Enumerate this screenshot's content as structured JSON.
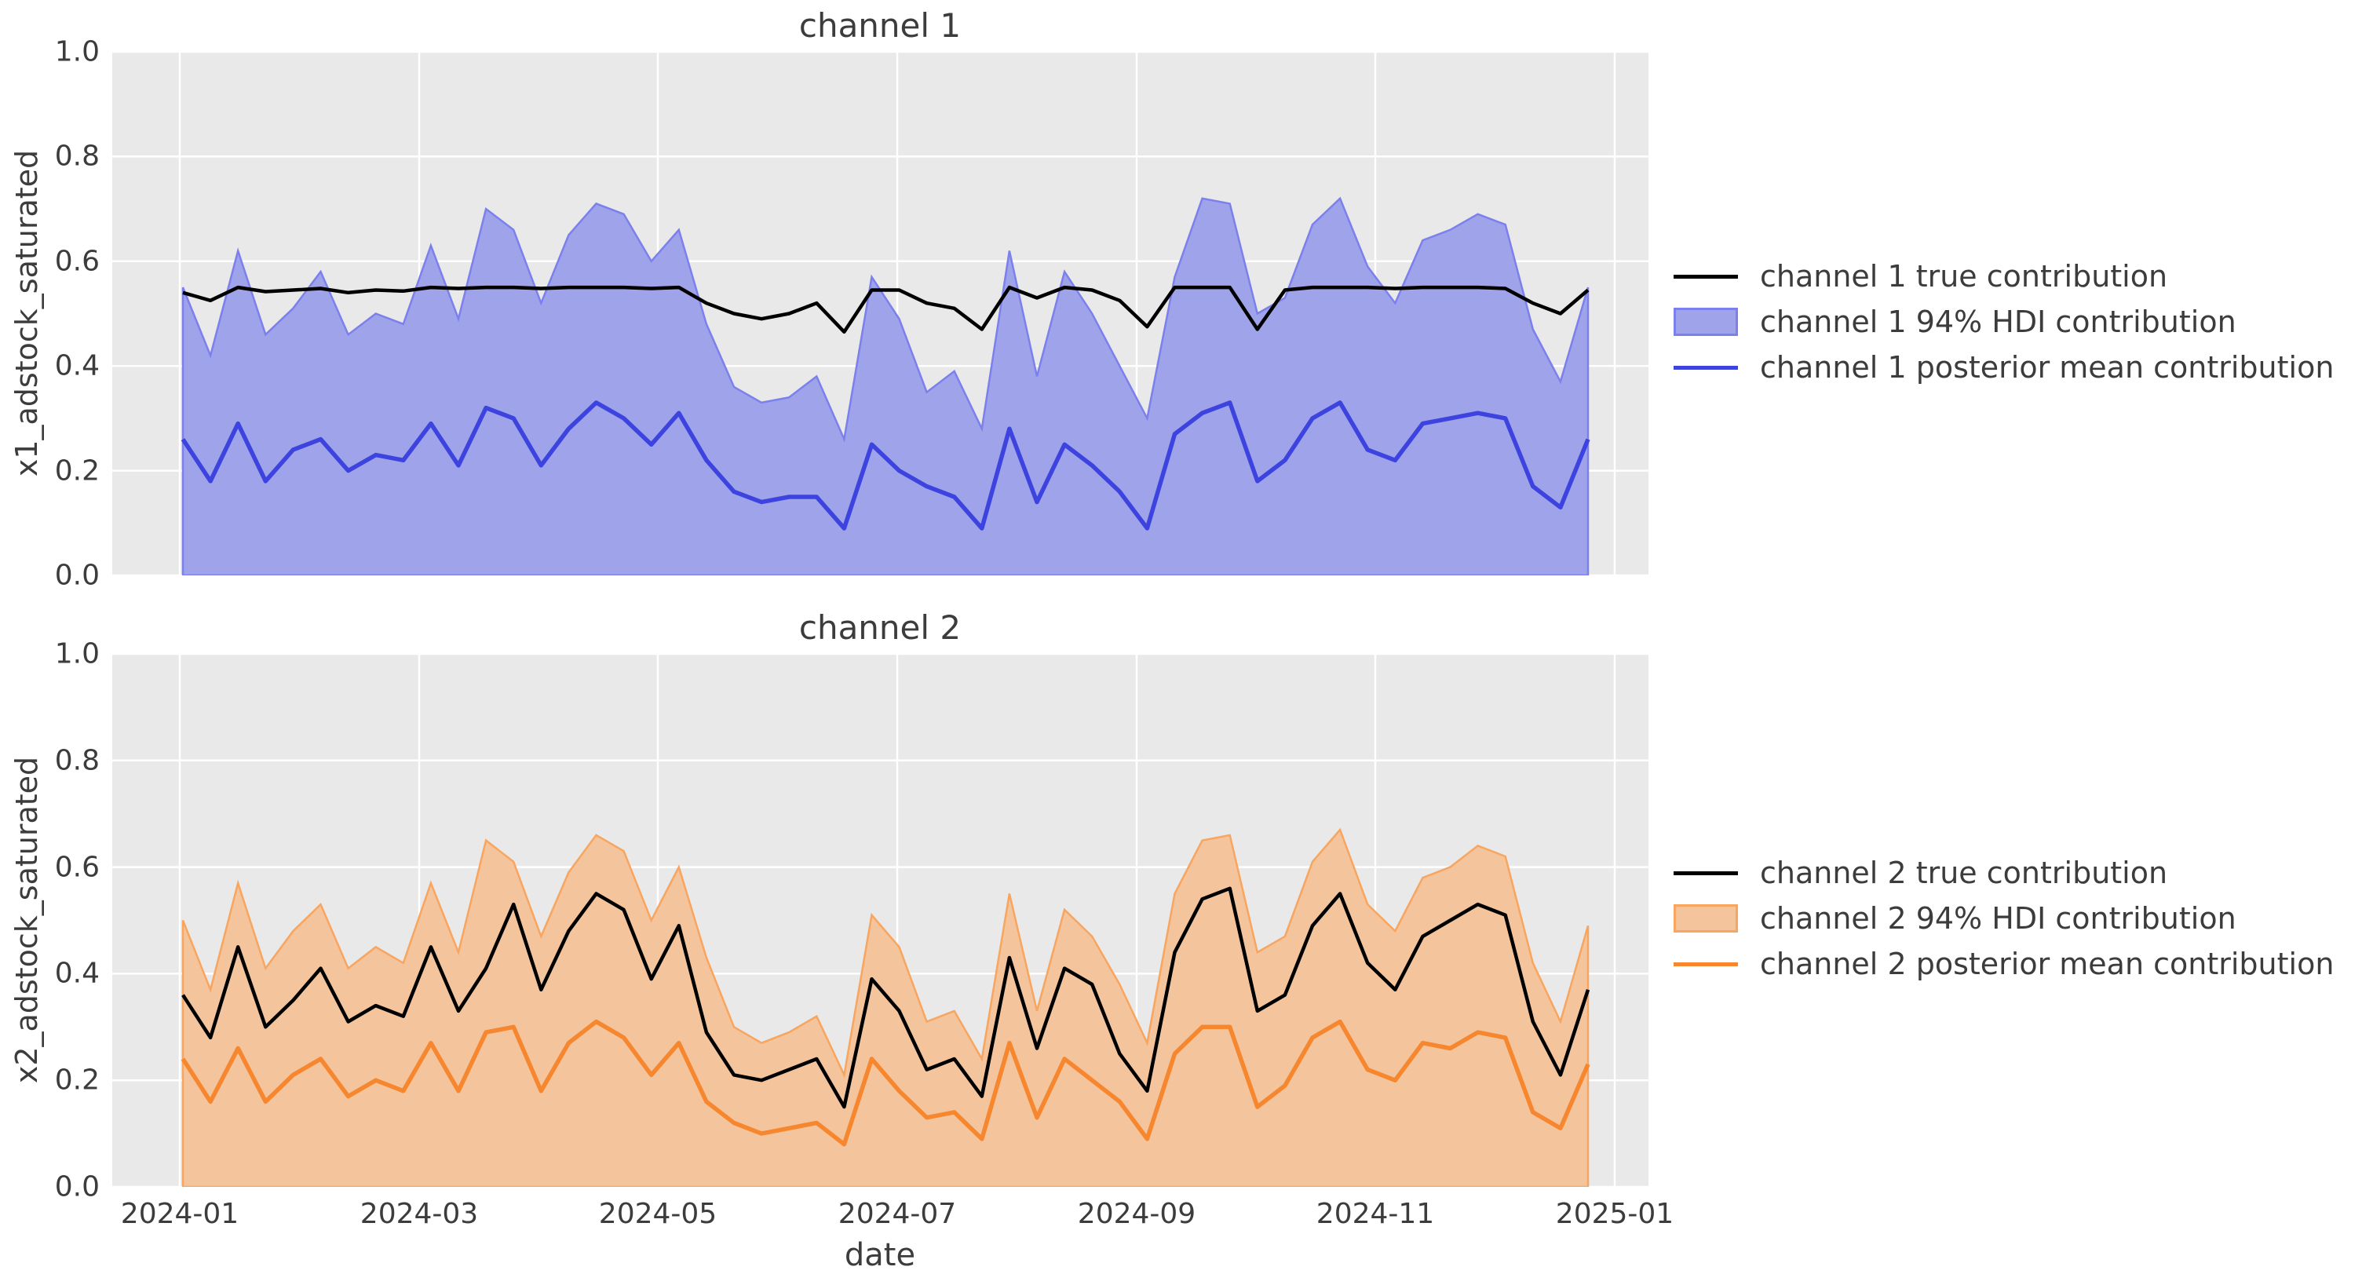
{
  "xlabel": "date",
  "colors": {
    "plot_background": "#e9e9e9",
    "grid": "#ffffff",
    "true_line": "#000000",
    "ch1_band_fill": "#9fa3ea",
    "ch1_band_edge": "#7c80ec",
    "ch1_mean_line": "#3d43df",
    "ch2_band_fill": "#f4c49d",
    "ch2_band_edge": "#f8a55f",
    "ch2_mean_line": "#f6872f",
    "text": "#3c3c3c"
  },
  "chart_data": [
    {
      "type": "line",
      "title": "channel 1",
      "xlabel": "date",
      "ylabel": "x1_adstock_saturated",
      "ylim": [
        0.0,
        1.0
      ],
      "y_ticks": [
        0.0,
        0.2,
        0.4,
        0.6,
        0.8,
        1.0
      ],
      "x_tick_labels": [
        "2024-01",
        "2024-03",
        "2024-05",
        "2024-07",
        "2024-09",
        "2024-11",
        "2025-01"
      ],
      "show_x_tick_labels": false,
      "grid": true,
      "legend_position": "right",
      "x_start": "2024-01-01",
      "x_freq": "weekly",
      "n_points": 52,
      "series": [
        {
          "name": "channel 1 true contribution",
          "kind": "line",
          "color_key": "true_line",
          "values": [
            0.54,
            0.525,
            0.55,
            0.542,
            0.545,
            0.548,
            0.54,
            0.545,
            0.543,
            0.55,
            0.548,
            0.55,
            0.55,
            0.548,
            0.55,
            0.55,
            0.55,
            0.548,
            0.55,
            0.52,
            0.5,
            0.49,
            0.5,
            0.52,
            0.465,
            0.545,
            0.545,
            0.52,
            0.51,
            0.47,
            0.55,
            0.53,
            0.55,
            0.545,
            0.525,
            0.475,
            0.55,
            0.55,
            0.55,
            0.47,
            0.545,
            0.55,
            0.55,
            0.55,
            0.548,
            0.55,
            0.55,
            0.55,
            0.548,
            0.52,
            0.5,
            0.545
          ]
        },
        {
          "name": "channel 1 94% HDI contribution",
          "kind": "band",
          "fill_key": "ch1_band_fill",
          "edge_key": "ch1_band_edge",
          "lower": 0.0,
          "upper": [
            0.55,
            0.42,
            0.62,
            0.46,
            0.51,
            0.58,
            0.46,
            0.5,
            0.48,
            0.63,
            0.49,
            0.7,
            0.66,
            0.52,
            0.65,
            0.71,
            0.69,
            0.6,
            0.66,
            0.48,
            0.36,
            0.33,
            0.34,
            0.38,
            0.26,
            0.57,
            0.49,
            0.35,
            0.39,
            0.28,
            0.62,
            0.38,
            0.58,
            0.5,
            0.4,
            0.3,
            0.57,
            0.72,
            0.71,
            0.5,
            0.53,
            0.67,
            0.72,
            0.59,
            0.52,
            0.64,
            0.66,
            0.69,
            0.67,
            0.47,
            0.37,
            0.55
          ]
        },
        {
          "name": "channel 1 posterior mean contribution",
          "kind": "line",
          "color_key": "ch1_mean_line",
          "values": [
            0.26,
            0.18,
            0.29,
            0.18,
            0.24,
            0.26,
            0.2,
            0.23,
            0.22,
            0.29,
            0.21,
            0.32,
            0.3,
            0.21,
            0.28,
            0.33,
            0.3,
            0.25,
            0.31,
            0.22,
            0.16,
            0.14,
            0.15,
            0.15,
            0.09,
            0.25,
            0.2,
            0.17,
            0.15,
            0.09,
            0.28,
            0.14,
            0.25,
            0.21,
            0.16,
            0.09,
            0.27,
            0.31,
            0.33,
            0.18,
            0.22,
            0.3,
            0.33,
            0.24,
            0.22,
            0.29,
            0.3,
            0.31,
            0.3,
            0.17,
            0.13,
            0.26
          ]
        }
      ]
    },
    {
      "type": "line",
      "title": "channel 2",
      "xlabel": "date",
      "ylabel": "x2_adstock_saturated",
      "ylim": [
        0.0,
        1.0
      ],
      "y_ticks": [
        0.0,
        0.2,
        0.4,
        0.6,
        0.8,
        1.0
      ],
      "x_tick_labels": [
        "2024-01",
        "2024-03",
        "2024-05",
        "2024-07",
        "2024-09",
        "2024-11",
        "2025-01"
      ],
      "show_x_tick_labels": true,
      "grid": true,
      "legend_position": "right",
      "x_start": "2024-01-01",
      "x_freq": "weekly",
      "n_points": 52,
      "series": [
        {
          "name": "channel 2 true contribution",
          "kind": "line",
          "color_key": "true_line",
          "values": [
            0.36,
            0.28,
            0.45,
            0.3,
            0.35,
            0.41,
            0.31,
            0.34,
            0.32,
            0.45,
            0.33,
            0.41,
            0.53,
            0.37,
            0.48,
            0.55,
            0.52,
            0.39,
            0.49,
            0.29,
            0.21,
            0.2,
            0.22,
            0.24,
            0.15,
            0.39,
            0.33,
            0.22,
            0.24,
            0.17,
            0.43,
            0.26,
            0.41,
            0.38,
            0.25,
            0.18,
            0.44,
            0.54,
            0.56,
            0.33,
            0.36,
            0.49,
            0.55,
            0.42,
            0.37,
            0.47,
            0.5,
            0.53,
            0.51,
            0.31,
            0.21,
            0.37
          ]
        },
        {
          "name": "channel 2 94% HDI contribution",
          "kind": "band",
          "fill_key": "ch2_band_fill",
          "edge_key": "ch2_band_edge",
          "lower": 0.0,
          "upper": [
            0.5,
            0.37,
            0.57,
            0.41,
            0.48,
            0.53,
            0.41,
            0.45,
            0.42,
            0.57,
            0.44,
            0.65,
            0.61,
            0.47,
            0.59,
            0.66,
            0.63,
            0.5,
            0.6,
            0.43,
            0.3,
            0.27,
            0.29,
            0.32,
            0.21,
            0.51,
            0.45,
            0.31,
            0.33,
            0.24,
            0.55,
            0.33,
            0.52,
            0.47,
            0.38,
            0.27,
            0.55,
            0.65,
            0.66,
            0.44,
            0.47,
            0.61,
            0.67,
            0.53,
            0.48,
            0.58,
            0.6,
            0.64,
            0.62,
            0.42,
            0.31,
            0.49
          ]
        },
        {
          "name": "channel 2 posterior mean contribution",
          "kind": "line",
          "color_key": "ch2_mean_line",
          "values": [
            0.24,
            0.16,
            0.26,
            0.16,
            0.21,
            0.24,
            0.17,
            0.2,
            0.18,
            0.27,
            0.18,
            0.29,
            0.3,
            0.18,
            0.27,
            0.31,
            0.28,
            0.21,
            0.27,
            0.16,
            0.12,
            0.1,
            0.11,
            0.12,
            0.08,
            0.24,
            0.18,
            0.13,
            0.14,
            0.09,
            0.27,
            0.13,
            0.24,
            0.2,
            0.16,
            0.09,
            0.25,
            0.3,
            0.3,
            0.15,
            0.19,
            0.28,
            0.31,
            0.22,
            0.2,
            0.27,
            0.26,
            0.29,
            0.28,
            0.14,
            0.11,
            0.23
          ]
        }
      ]
    }
  ]
}
